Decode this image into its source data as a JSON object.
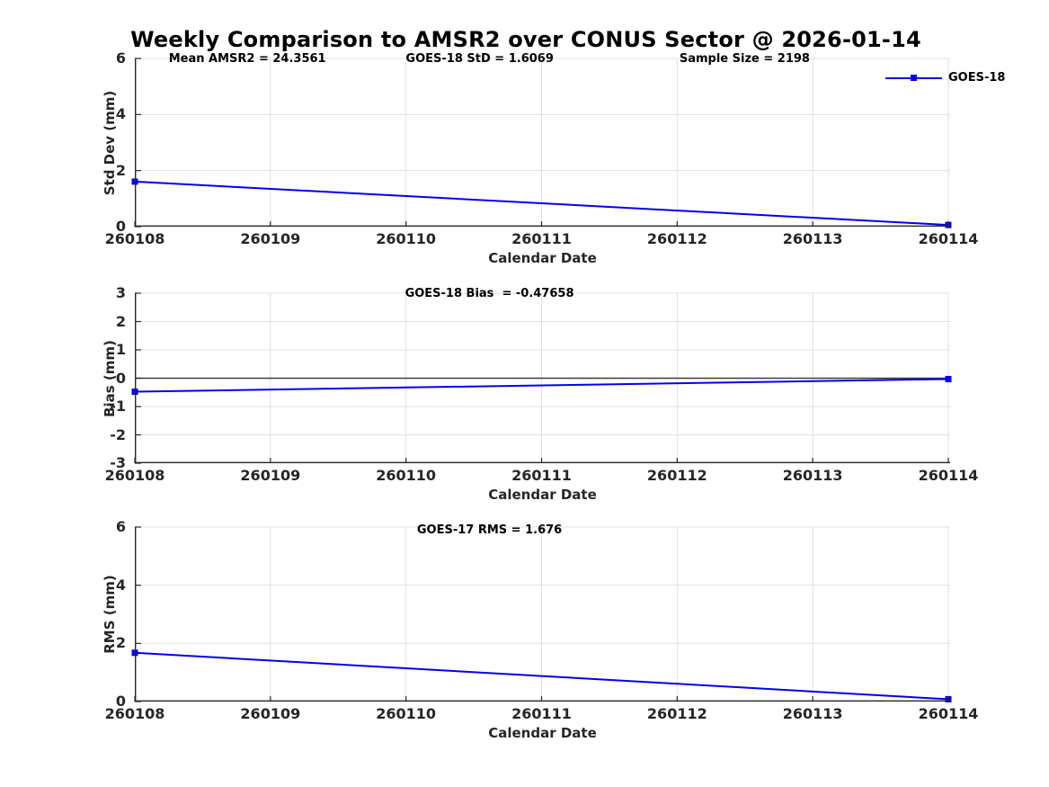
{
  "figure": {
    "title": "Weekly Comparison to AMSR2 over CONUS Sector @ 2026-01-14",
    "background": "#ffffff"
  },
  "colors": {
    "line": "#0000EE",
    "grid": "#e0e0e0",
    "axis": "#262626",
    "zero_line": "#3c3c3c",
    "text": "#000000"
  },
  "chart_data": [
    {
      "type": "line",
      "title": "",
      "top_annotations": [
        "Mean AMSR2 = 24.3561",
        "GOES-18 StD = 1.6069",
        "Sample Size = 2198"
      ],
      "xlabel": "Calendar Date",
      "ylabel": "Std Dev (mm)",
      "xlim": [
        260108,
        260114
      ],
      "ylim": [
        0,
        6
      ],
      "xticks": [
        "260108",
        "260109",
        "260110",
        "260111",
        "260112",
        "260113",
        "260114"
      ],
      "yticks": [
        0,
        2,
        4,
        6
      ],
      "grid": true,
      "zero_line": false,
      "legend": {
        "visible": true,
        "entries": [
          "GOES-18"
        ],
        "position": "top-right"
      },
      "series": [
        {
          "name": "GOES-18",
          "marker": "square",
          "x": [
            260108,
            260114
          ],
          "values": [
            1.6069,
            0.06
          ]
        }
      ]
    },
    {
      "type": "line",
      "title": "GOES-18 Bias  = -0.47658",
      "top_annotations": [],
      "xlabel": "Calendar Date",
      "ylabel": "Bias (mm)",
      "xlim": [
        260108,
        260114
      ],
      "ylim": [
        -3,
        3
      ],
      "xticks": [
        "260108",
        "260109",
        "260110",
        "260111",
        "260112",
        "260113",
        "260114"
      ],
      "yticks": [
        -3,
        -2,
        -1,
        0,
        1,
        2,
        3
      ],
      "grid": true,
      "zero_line": true,
      "legend": {
        "visible": false,
        "entries": [],
        "position": ""
      },
      "series": [
        {
          "name": "GOES-18",
          "marker": "square",
          "x": [
            260108,
            260114
          ],
          "values": [
            -0.47658,
            -0.03
          ]
        }
      ]
    },
    {
      "type": "line",
      "title": "GOES-17 RMS = 1.676",
      "top_annotations": [],
      "xlabel": "Calendar Date",
      "ylabel": "RMS (mm)",
      "xlim": [
        260108,
        260114
      ],
      "ylim": [
        0,
        6
      ],
      "xticks": [
        "260108",
        "260109",
        "260110",
        "260111",
        "260112",
        "260113",
        "260114"
      ],
      "yticks": [
        0,
        2,
        4,
        6
      ],
      "grid": true,
      "zero_line": false,
      "legend": {
        "visible": false,
        "entries": [],
        "position": ""
      },
      "series": [
        {
          "name": "GOES-17",
          "marker": "square",
          "x": [
            260108,
            260114
          ],
          "values": [
            1.676,
            0.08
          ]
        }
      ]
    }
  ]
}
